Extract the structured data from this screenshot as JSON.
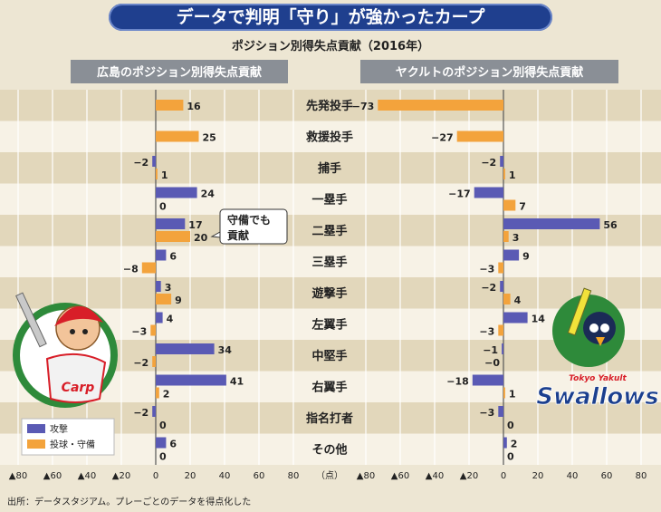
{
  "title": "データで判明「守り」が強かったカープ",
  "subtitle": "ポジション別得失点貢献（2016年）",
  "source": "出所：データスタジアム。プレーごとのデータを得点化した",
  "colors": {
    "attack": "#5a5ab4",
    "defense": "#f3a33c",
    "header": "#8a8f96",
    "title": "#1f3f8e"
  },
  "chart_data": [
    {
      "type": "bar",
      "orientation": "horizontal",
      "title": "広島のポジション別得失点貢献",
      "categories": [
        "先発投手",
        "救援投手",
        "捕手",
        "一塁手",
        "二塁手",
        "三塁手",
        "遊撃手",
        "左翼手",
        "中堅手",
        "右翼手",
        "指名打者",
        "その他"
      ],
      "series": [
        {
          "name": "攻撃",
          "values": [
            null,
            null,
            -2,
            24,
            17,
            6,
            3,
            4,
            34,
            41,
            -2,
            6
          ]
        },
        {
          "name": "投球・守備",
          "values": [
            16,
            25,
            1,
            0,
            20,
            -8,
            9,
            -3,
            -2,
            2,
            0,
            0
          ]
        }
      ],
      "xlim": [
        -80,
        80
      ],
      "ticks": [
        "▲80",
        "▲60",
        "▲40",
        "▲20",
        "0",
        "20",
        "40",
        "60",
        "80"
      ],
      "annotation": [
        "守備でも",
        "貢献"
      ]
    },
    {
      "type": "bar",
      "orientation": "horizontal",
      "title": "ヤクルトのポジション別得失点貢献",
      "categories": [
        "先発投手",
        "救援投手",
        "捕手",
        "一塁手",
        "二塁手",
        "三塁手",
        "遊撃手",
        "左翼手",
        "中堅手",
        "右翼手",
        "指名打者",
        "その他"
      ],
      "series": [
        {
          "name": "攻撃",
          "values": [
            null,
            null,
            -2,
            -17,
            56,
            9,
            -2,
            14,
            -1,
            -18,
            -3,
            2
          ]
        },
        {
          "name": "投球・守備",
          "values": [
            -73,
            -27,
            1,
            7,
            3,
            -3,
            4,
            -3,
            0,
            1,
            0,
            0
          ]
        }
      ],
      "value_labels": {
        "攻撃": [
          null,
          null,
          "−2",
          "−17",
          "56",
          "9",
          "−2",
          "14",
          "−1",
          "−18",
          "−3",
          "2"
        ],
        "投球・守備": [
          "−73",
          "−27",
          "1",
          "7",
          "3",
          "−3",
          "4",
          "−3",
          "−0",
          "1",
          "0",
          "0"
        ]
      },
      "xlim": [
        -80,
        80
      ],
      "ticks": [
        "▲80",
        "▲60",
        "▲40",
        "▲20",
        "0",
        "20",
        "40",
        "60",
        "80"
      ]
    }
  ],
  "legend": [
    {
      "name": "攻撃"
    },
    {
      "name": "投球・守備"
    }
  ],
  "unit_label": "（点）",
  "logos": {
    "carp": "Carp",
    "swallows_top": "Tokyo Yakult",
    "swallows_main": "Swallows"
  }
}
